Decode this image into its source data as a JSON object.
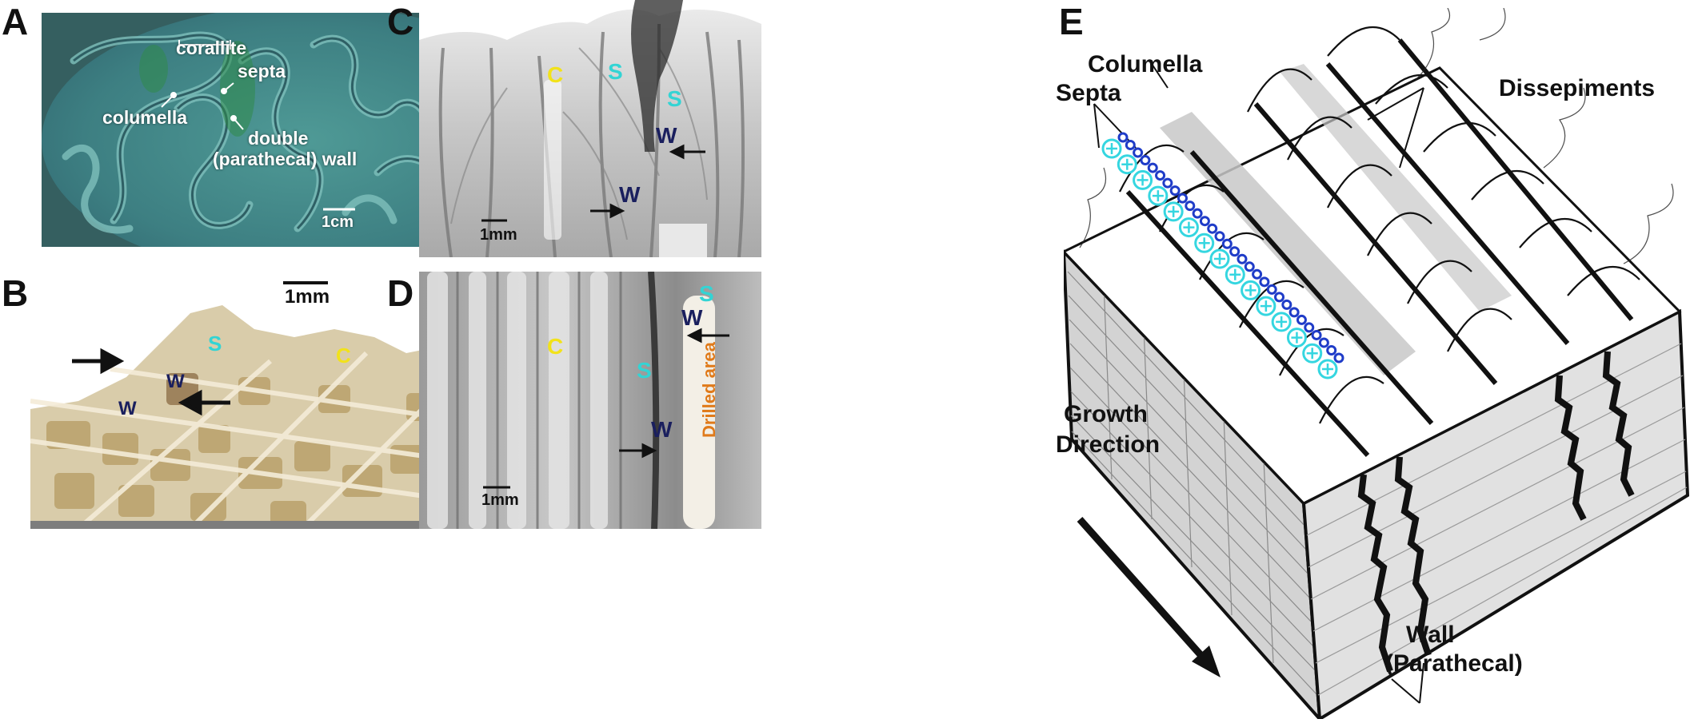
{
  "panels": {
    "a": {
      "letter": "A",
      "labels": {
        "corallite": "corallite",
        "septa": "septa",
        "columella": "columella",
        "double": "double",
        "parathecal_wall": "(parathecal) wall"
      },
      "scale": "1cm"
    },
    "b": {
      "letter": "B",
      "scale": "1mm",
      "labels": {
        "s": "S",
        "c": "C",
        "w1": "W",
        "w2": "W"
      }
    },
    "c": {
      "letter": "C",
      "scale": "1mm",
      "labels": {
        "c": "C",
        "s1": "S",
        "s2": "S",
        "w1": "W",
        "w2": "W"
      }
    },
    "d": {
      "letter": "D",
      "scale": "1mm",
      "labels": {
        "c": "C",
        "s1": "S",
        "s2": "S",
        "w1": "W",
        "w2": "W",
        "drilled": "Drilled area"
      }
    },
    "e": {
      "letter": "E",
      "labels": {
        "columella": "Columella",
        "septa": "Septa",
        "dissepiments": "Dissepiments",
        "growth": "Growth",
        "direction": "Direction",
        "wall": "Wall",
        "parathecal": "(Parathecal)"
      }
    }
  },
  "colors": {
    "c_label": "#f2e21a",
    "s_label": "#33d4d4",
    "w_label": "#1a1f5e",
    "drilled_label": "#e07a1a",
    "column_marks": "#35d6e0",
    "column_dots": "#1f3cc8"
  }
}
